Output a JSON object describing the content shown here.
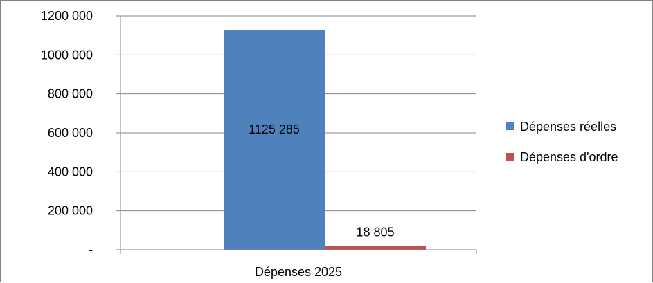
{
  "chart_data": {
    "type": "bar",
    "title": "",
    "xlabel": "",
    "ylabel": "",
    "categories": [
      "Dépenses 2025"
    ],
    "series": [
      {
        "name": "Dépenses réelles",
        "values": [
          1125285
        ],
        "color": "#4F81BD",
        "value_label": "1125 285"
      },
      {
        "name": "Dépenses d'ordre",
        "values": [
          18805
        ],
        "color": "#C0504D",
        "value_label": "18 805"
      }
    ],
    "ylim": [
      0,
      1200000
    ],
    "y_ticks": [
      {
        "value": 0,
        "label": "-"
      },
      {
        "value": 200000,
        "label": "200 000"
      },
      {
        "value": 400000,
        "label": "400 000"
      },
      {
        "value": 600000,
        "label": "600 000"
      },
      {
        "value": 800000,
        "label": "800 000"
      },
      {
        "value": 1000000,
        "label": "1000 000"
      },
      {
        "value": 1200000,
        "label": "1200 000"
      }
    ],
    "grid": true,
    "legend_position": "right"
  }
}
